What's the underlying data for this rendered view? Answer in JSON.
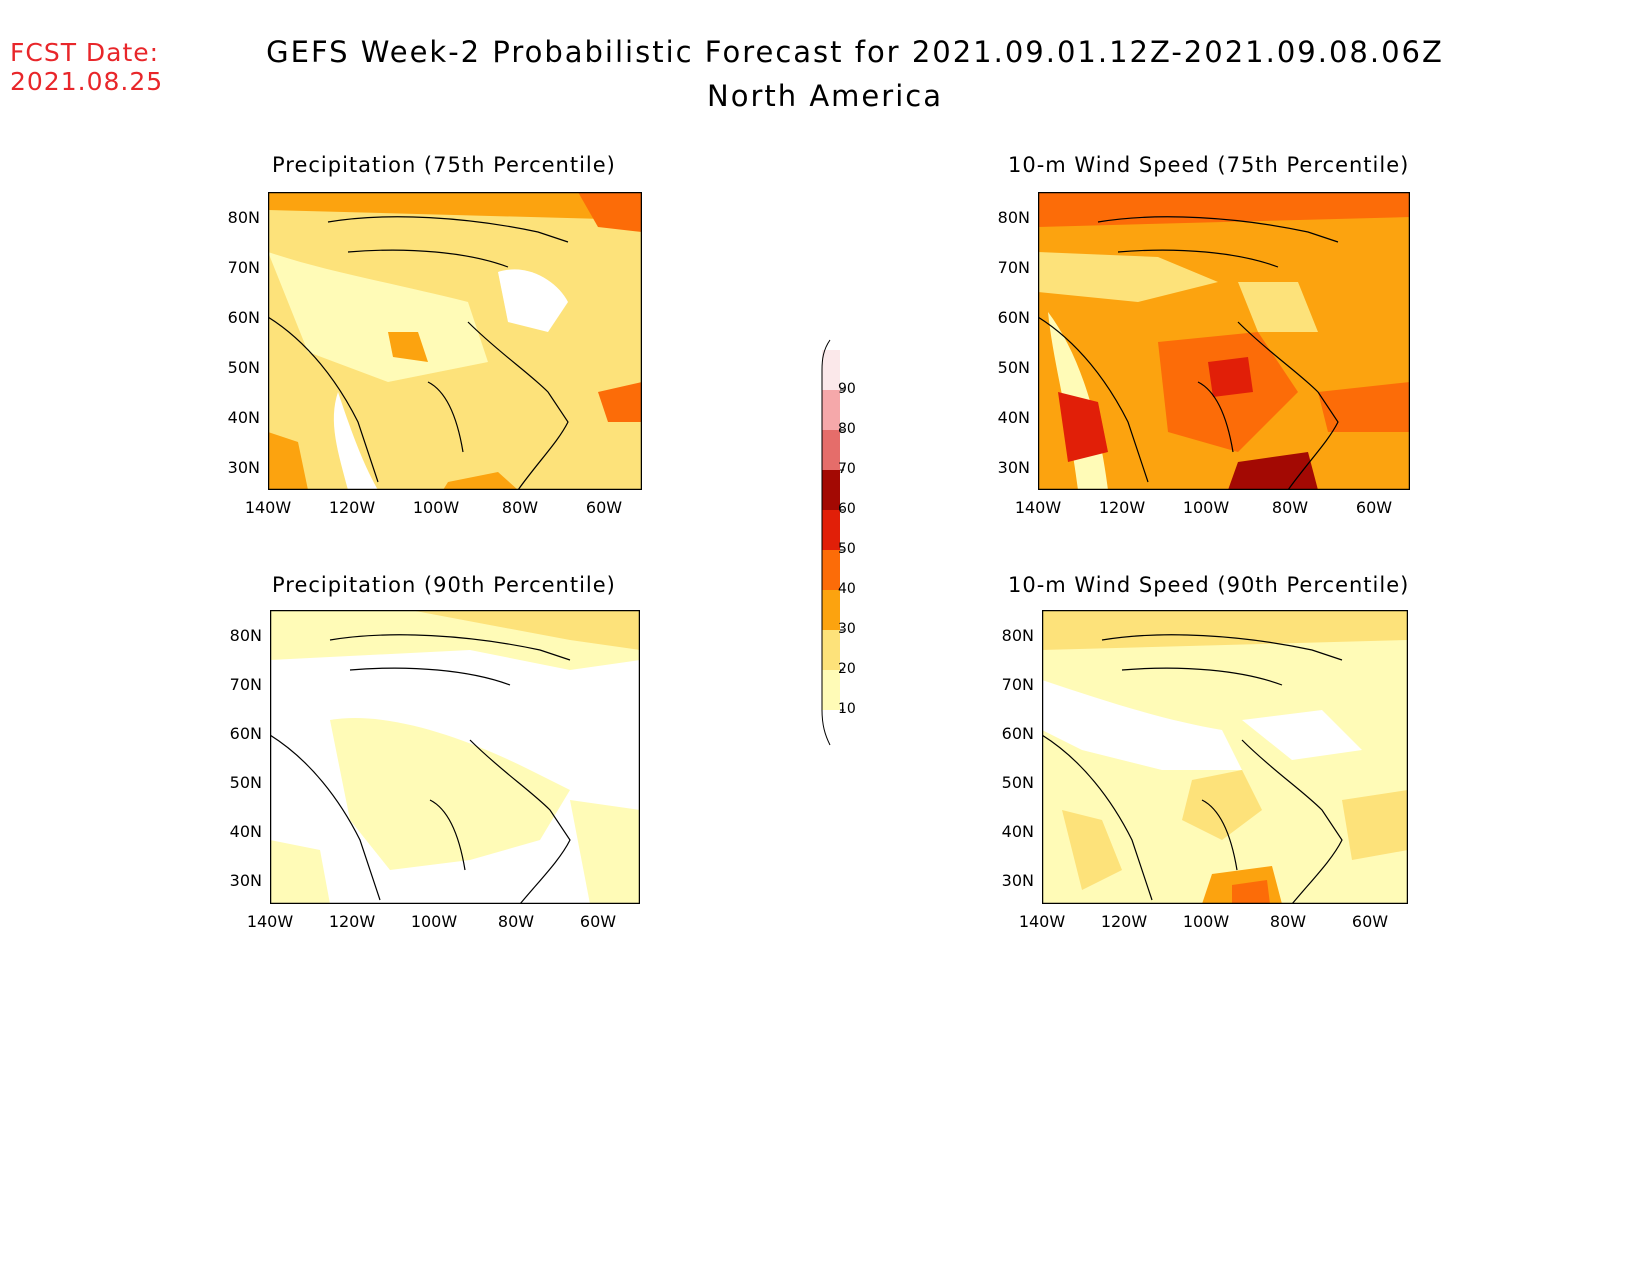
{
  "forecast_date": {
    "label": "FCST Date:",
    "value": "2021.08.25"
  },
  "title": {
    "line1": "GEFS Week-2 Probabilistic Forecast for 2021.09.01.12Z-2021.09.08.06Z",
    "line2": "North America"
  },
  "axes": {
    "lat_labels": [
      "80N",
      "70N",
      "60N",
      "50N",
      "40N",
      "30N"
    ],
    "lon_labels": [
      "140W",
      "120W",
      "100W",
      "80W",
      "60W"
    ]
  },
  "panels": [
    {
      "id": "precip-75",
      "title": "Precipitation (75th Percentile)"
    },
    {
      "id": "wind-75",
      "title": "10-m Wind Speed (75th Percentile)"
    },
    {
      "id": "precip-90",
      "title": "Precipitation (90th Percentile)"
    },
    {
      "id": "wind-90",
      "title": "10-m Wind Speed (90th Percentile)"
    }
  ],
  "colorbar": {
    "levels": [
      "10",
      "20",
      "30",
      "40",
      "50",
      "60",
      "70",
      "80",
      "90"
    ],
    "colors": [
      "#fffbb7",
      "#fde27a",
      "#fca30f",
      "#fc6c08",
      "#e11f08",
      "#a30903",
      "#e56d6a",
      "#f5a8aa",
      "#fbe8ea"
    ]
  }
}
